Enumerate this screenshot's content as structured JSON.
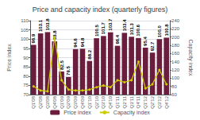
{
  "chart_data": {
    "type": "bar",
    "title": "Price and capacity index (quarterly figures)",
    "categories": [
      "Q1'08",
      "Q2'08",
      "Q3'08",
      "Q4'08",
      "Q1'09",
      "Q2'09",
      "Q3'09",
      "Q4'09",
      "Q1'10",
      "Q2'10",
      "Q3'10",
      "Q4'10",
      "Q1'11",
      "Q2'11",
      "Q3'11",
      "Q4'11",
      "Q1'12",
      "Q2'12",
      "Q3'12",
      "Q4'12"
    ],
    "series": [
      {
        "name": "Price index",
        "type": "bar",
        "color": "#6B1D3E",
        "data_labels": true,
        "values": [
          96.9,
          103.1,
          103.8,
          98.8,
          82.5,
          79.5,
          94.6,
          94.8,
          88.2,
          100.5,
          101.7,
          103.7,
          96.4,
          103.4,
          101.3,
          100.6,
          95.4,
          92.7,
          100.0,
          100.8
        ],
        "value_labels": [
          "96.9",
          "103.1",
          "103.8",
          "98.8",
          "82.5",
          "79.5",
          "94.6",
          "94.8",
          "88.2",
          "100.5",
          "101.7",
          "103.7",
          "96.4",
          "103.4",
          "101.3",
          "100.6",
          "95.4",
          "92.7",
          "100.0",
          "100.8"
        ]
      },
      {
        "name": "Capacity index",
        "type": "line",
        "color": "#CCCC00",
        "marker": "circle",
        "axis": "y2",
        "values": [
          80,
          70,
          68,
          200,
          95,
          72,
          70,
          70,
          72,
          78,
          82,
          78,
          95,
          90,
          95,
          140,
          75,
          85,
          120,
          85
        ]
      }
    ],
    "ylabel": "Price index",
    "y2label": "Capacity index",
    "ylim": [
      70,
      110
    ],
    "yticks": [
      70,
      75,
      80,
      85,
      90,
      95,
      100,
      105,
      110
    ],
    "y2lim": [
      60,
      240
    ],
    "y2ticks": [
      60,
      80,
      100,
      120,
      140,
      160,
      180,
      200,
      220,
      240
    ],
    "grid": true,
    "legend": "bottom"
  }
}
